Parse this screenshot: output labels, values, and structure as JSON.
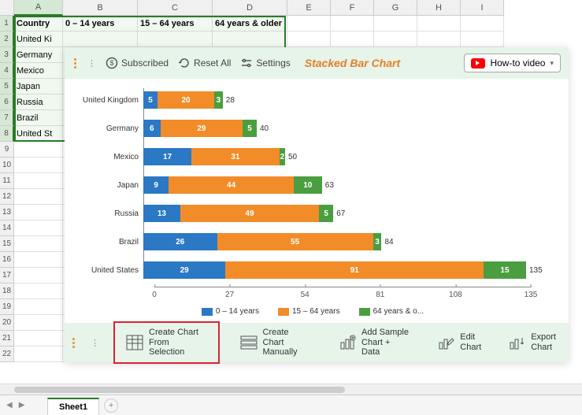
{
  "columns": [
    "A",
    "B",
    "C",
    "D",
    "E",
    "F",
    "G",
    "H",
    "I"
  ],
  "headers": {
    "A": "Country",
    "B": "0 – 14 years",
    "C": "15 – 64 years",
    "D": "64 years & older"
  },
  "data_rows": [
    {
      "A": "United Ki"
    },
    {
      "A": "Germany"
    },
    {
      "A": "Mexico"
    },
    {
      "A": "Japan"
    },
    {
      "A": "Russia"
    },
    {
      "A": "Brazil"
    },
    {
      "A": "United St"
    }
  ],
  "row_count_visible": 22,
  "selected_col": "A",
  "selected_rows": [
    1,
    8
  ],
  "toolbar": {
    "subscribed": "Subscribed",
    "reset": "Reset All",
    "settings": "Settings",
    "title": "Stacked Bar Chart",
    "howto": "How-to video"
  },
  "chart": {
    "type": "stacked-bar-horizontal",
    "x_max": 135,
    "x_ticks": [
      0,
      27,
      54,
      81,
      108,
      135
    ],
    "series_colors": [
      "#2b78c4",
      "#f28c28",
      "#4a9e3f"
    ],
    "background_color": "#ffffff",
    "axis_color": "#888888",
    "label_fontsize": 10,
    "series": [
      "0 – 14 years",
      "15 – 64 years",
      "64 years & o..."
    ],
    "bars": [
      {
        "label": "United Kingdom",
        "values": [
          5,
          20,
          3
        ],
        "total": 28
      },
      {
        "label": "Germany",
        "values": [
          6,
          29,
          5
        ],
        "total": 40
      },
      {
        "label": "Mexico",
        "values": [
          17,
          31,
          2
        ],
        "total": 50
      },
      {
        "label": "Japan",
        "values": [
          9,
          44,
          10
        ],
        "total": 63
      },
      {
        "label": "Russia",
        "values": [
          13,
          49,
          5
        ],
        "total": 67
      },
      {
        "label": "Brazil",
        "values": [
          26,
          55,
          3
        ],
        "total": 84
      },
      {
        "label": "United States",
        "values": [
          29,
          91,
          15
        ],
        "total": 135
      }
    ]
  },
  "actions": {
    "create_sel_l1": "Create Chart",
    "create_sel_l2": "From Selection",
    "create_man_l1": "Create Chart",
    "create_man_l2": "Manually",
    "sample_l1": "Add Sample",
    "sample_l2": "Chart + Data",
    "edit_l1": "Edit",
    "edit_l2": "Chart",
    "export_l1": "Export",
    "export_l2": "Chart"
  },
  "sheet": {
    "active": "Sheet1"
  }
}
